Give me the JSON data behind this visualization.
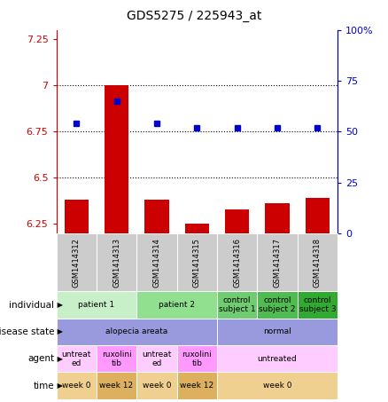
{
  "title": "GDS5275 / 225943_at",
  "samples": [
    "GSM1414312",
    "GSM1414313",
    "GSM1414314",
    "GSM1414315",
    "GSM1414316",
    "GSM1414317",
    "GSM1414318"
  ],
  "bar_values": [
    6.38,
    7.0,
    6.38,
    6.25,
    6.33,
    6.36,
    6.39
  ],
  "dot_values": [
    54,
    65,
    54,
    52,
    52,
    52,
    52
  ],
  "ylim_left": [
    6.2,
    7.3
  ],
  "ylim_right": [
    0,
    100
  ],
  "yticks_left": [
    6.25,
    6.5,
    6.75,
    7.0,
    7.25
  ],
  "yticks_right": [
    0,
    25,
    50,
    75,
    100
  ],
  "ytick_labels_left": [
    "6.25",
    "6.5",
    "6.75",
    "7",
    "7.25"
  ],
  "ytick_labels_right": [
    "0",
    "25",
    "50",
    "75",
    "100%"
  ],
  "hlines": [
    6.5,
    6.75,
    7.0
  ],
  "bar_color": "#cc0000",
  "dot_color": "#0000cc",
  "bar_width": 0.6,
  "individual_groups": [
    {
      "label": "patient 1",
      "cols": [
        0,
        1
      ],
      "color": "#c8f0c8"
    },
    {
      "label": "patient 2",
      "cols": [
        2,
        3
      ],
      "color": "#90e090"
    },
    {
      "label": "control\nsubject 1",
      "cols": [
        4
      ],
      "color": "#70cc70"
    },
    {
      "label": "control\nsubject 2",
      "cols": [
        5
      ],
      "color": "#50bb50"
    },
    {
      "label": "control\nsubject 3",
      "cols": [
        6
      ],
      "color": "#30aa30"
    }
  ],
  "disease_groups": [
    {
      "label": "alopecia areata",
      "cols": [
        0,
        1,
        2,
        3
      ],
      "color": "#9999dd"
    },
    {
      "label": "normal",
      "cols": [
        4,
        5,
        6
      ],
      "color": "#9999dd"
    }
  ],
  "agent_groups": [
    {
      "label": "untreat\ned",
      "cols": [
        0
      ],
      "color": "#ffccff"
    },
    {
      "label": "ruxolini\ntib",
      "cols": [
        1
      ],
      "color": "#ff99ff"
    },
    {
      "label": "untreat\ned",
      "cols": [
        2
      ],
      "color": "#ffccff"
    },
    {
      "label": "ruxolini\ntib",
      "cols": [
        3
      ],
      "color": "#ff99ff"
    },
    {
      "label": "untreated",
      "cols": [
        4,
        5,
        6
      ],
      "color": "#ffccff"
    }
  ],
  "time_groups": [
    {
      "label": "week 0",
      "cols": [
        0
      ],
      "color": "#f0d090"
    },
    {
      "label": "week 12",
      "cols": [
        1
      ],
      "color": "#ddb060"
    },
    {
      "label": "week 0",
      "cols": [
        2
      ],
      "color": "#f0d090"
    },
    {
      "label": "week 12",
      "cols": [
        3
      ],
      "color": "#ddb060"
    },
    {
      "label": "week 0",
      "cols": [
        4,
        5,
        6
      ],
      "color": "#f0d090"
    }
  ],
  "row_order": [
    "individual",
    "disease state",
    "agent",
    "time"
  ],
  "sample_bg_color": "#cccccc",
  "left_axis_color": "#cc0000",
  "right_axis_color": "#0000cc",
  "fig_width": 4.38,
  "fig_height": 4.53,
  "dpi": 100
}
